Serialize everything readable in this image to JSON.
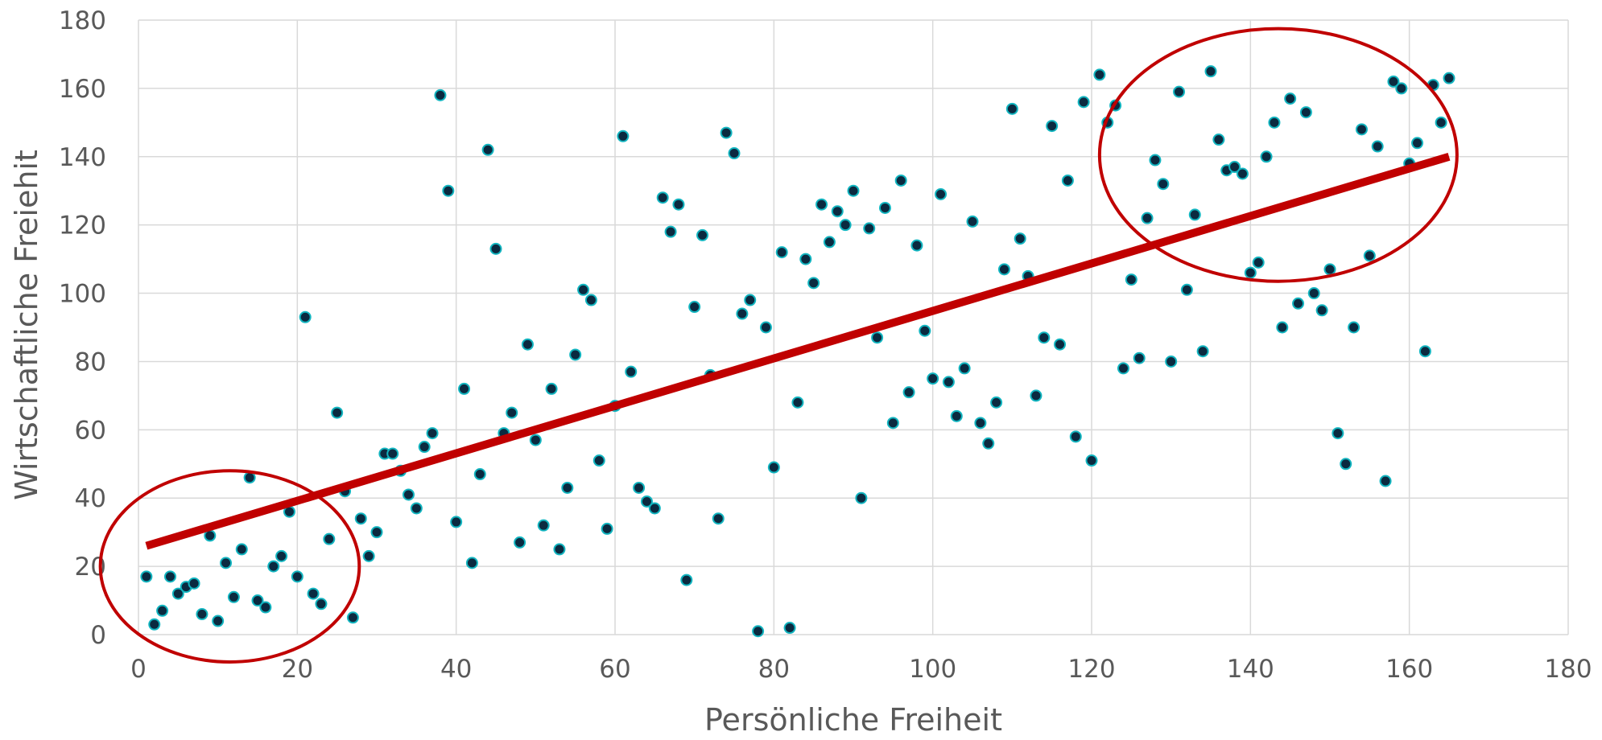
{
  "chart_data": {
    "type": "scatter",
    "title": "",
    "xlabel": "Persönliche Freiheit",
    "ylabel": "Wirtschaftliche Freiehit",
    "xlim": [
      0,
      180
    ],
    "ylim": [
      0,
      180
    ],
    "xticks": [
      "0",
      "20",
      "40",
      "60",
      "80",
      "100",
      "120",
      "140",
      "160",
      "180"
    ],
    "yticks": [
      "0",
      "20",
      "40",
      "60",
      "80",
      "100",
      "120",
      "140",
      "160",
      "180"
    ],
    "grid": true,
    "legend": "none",
    "colors": {
      "marker_fill": "#0b2a40",
      "marker_edge": "#12b5c0",
      "trendline": "#c00000",
      "ellipse": "#c00000",
      "grid": "#d9d9d9",
      "text": "#595959"
    },
    "points": [
      [
        1,
        17
      ],
      [
        2,
        3
      ],
      [
        3,
        7
      ],
      [
        4,
        17
      ],
      [
        5,
        12
      ],
      [
        6,
        14
      ],
      [
        7,
        15
      ],
      [
        8,
        6
      ],
      [
        9,
        29
      ],
      [
        10,
        4
      ],
      [
        11,
        21
      ],
      [
        12,
        11
      ],
      [
        13,
        25
      ],
      [
        14,
        46
      ],
      [
        15,
        10
      ],
      [
        16,
        8
      ],
      [
        17,
        20
      ],
      [
        18,
        23
      ],
      [
        19,
        36
      ],
      [
        20,
        17
      ],
      [
        21,
        93
      ],
      [
        22,
        12
      ],
      [
        23,
        9
      ],
      [
        24,
        28
      ],
      [
        25,
        65
      ],
      [
        26,
        42
      ],
      [
        27,
        5
      ],
      [
        28,
        34
      ],
      [
        29,
        23
      ],
      [
        30,
        30
      ],
      [
        31,
        53
      ],
      [
        32,
        53
      ],
      [
        33,
        48
      ],
      [
        34,
        41
      ],
      [
        35,
        37
      ],
      [
        36,
        55
      ],
      [
        37,
        59
      ],
      [
        38,
        158
      ],
      [
        39,
        130
      ],
      [
        40,
        33
      ],
      [
        41,
        72
      ],
      [
        42,
        21
      ],
      [
        43,
        47
      ],
      [
        44,
        142
      ],
      [
        45,
        113
      ],
      [
        46,
        59
      ],
      [
        47,
        65
      ],
      [
        48,
        27
      ],
      [
        49,
        85
      ],
      [
        50,
        57
      ],
      [
        51,
        32
      ],
      [
        52,
        72
      ],
      [
        53,
        25
      ],
      [
        54,
        43
      ],
      [
        55,
        82
      ],
      [
        56,
        101
      ],
      [
        57,
        98
      ],
      [
        58,
        51
      ],
      [
        59,
        31
      ],
      [
        60,
        67
      ],
      [
        61,
        146
      ],
      [
        62,
        77
      ],
      [
        63,
        43
      ],
      [
        64,
        39
      ],
      [
        65,
        37
      ],
      [
        66,
        128
      ],
      [
        67,
        118
      ],
      [
        68,
        126
      ],
      [
        69,
        16
      ],
      [
        70,
        96
      ],
      [
        71,
        117
      ],
      [
        72,
        76
      ],
      [
        73,
        34
      ],
      [
        74,
        147
      ],
      [
        75,
        141
      ],
      [
        76,
        94
      ],
      [
        77,
        98
      ],
      [
        78,
        1
      ],
      [
        79,
        90
      ],
      [
        80,
        49
      ],
      [
        81,
        112
      ],
      [
        82,
        2
      ],
      [
        83,
        68
      ],
      [
        84,
        110
      ],
      [
        85,
        103
      ],
      [
        86,
        126
      ],
      [
        87,
        115
      ],
      [
        88,
        124
      ],
      [
        89,
        120
      ],
      [
        90,
        130
      ],
      [
        91,
        40
      ],
      [
        92,
        119
      ],
      [
        93,
        87
      ],
      [
        94,
        125
      ],
      [
        95,
        62
      ],
      [
        96,
        133
      ],
      [
        97,
        71
      ],
      [
        98,
        114
      ],
      [
        99,
        89
      ],
      [
        100,
        75
      ],
      [
        101,
        129
      ],
      [
        102,
        74
      ],
      [
        103,
        64
      ],
      [
        104,
        78
      ],
      [
        105,
        121
      ],
      [
        106,
        62
      ],
      [
        107,
        56
      ],
      [
        108,
        68
      ],
      [
        109,
        107
      ],
      [
        110,
        154
      ],
      [
        111,
        116
      ],
      [
        112,
        105
      ],
      [
        113,
        70
      ],
      [
        114,
        87
      ],
      [
        115,
        149
      ],
      [
        116,
        85
      ],
      [
        117,
        133
      ],
      [
        118,
        58
      ],
      [
        119,
        156
      ],
      [
        120,
        51
      ],
      [
        121,
        164
      ],
      [
        122,
        150
      ],
      [
        123,
        155
      ],
      [
        124,
        78
      ],
      [
        125,
        104
      ],
      [
        126,
        81
      ],
      [
        127,
        122
      ],
      [
        128,
        139
      ],
      [
        129,
        132
      ],
      [
        130,
        80
      ],
      [
        131,
        159
      ],
      [
        132,
        101
      ],
      [
        133,
        123
      ],
      [
        134,
        83
      ],
      [
        135,
        165
      ],
      [
        136,
        145
      ],
      [
        137,
        136
      ],
      [
        138,
        137
      ],
      [
        139,
        135
      ],
      [
        140,
        106
      ],
      [
        141,
        109
      ],
      [
        142,
        140
      ],
      [
        143,
        150
      ],
      [
        144,
        90
      ],
      [
        145,
        157
      ],
      [
        146,
        97
      ],
      [
        147,
        153
      ],
      [
        148,
        100
      ],
      [
        149,
        95
      ],
      [
        150,
        107
      ],
      [
        151,
        59
      ],
      [
        152,
        50
      ],
      [
        153,
        90
      ],
      [
        154,
        148
      ],
      [
        155,
        111
      ],
      [
        156,
        143
      ],
      [
        157,
        45
      ],
      [
        158,
        162
      ],
      [
        159,
        160
      ],
      [
        160,
        138
      ],
      [
        161,
        144
      ],
      [
        162,
        83
      ],
      [
        163,
        161
      ],
      [
        164,
        150
      ],
      [
        165,
        163
      ]
    ],
    "trendline": {
      "from": [
        1,
        26
      ],
      "to": [
        165,
        140
      ]
    },
    "highlight_ellipses": [
      {
        "center": [
          11.5,
          20
        ],
        "radius": [
          16.3,
          28
        ]
      },
      {
        "center": [
          143.5,
          140.5
        ],
        "radius": [
          22.5,
          37
        ]
      }
    ]
  }
}
